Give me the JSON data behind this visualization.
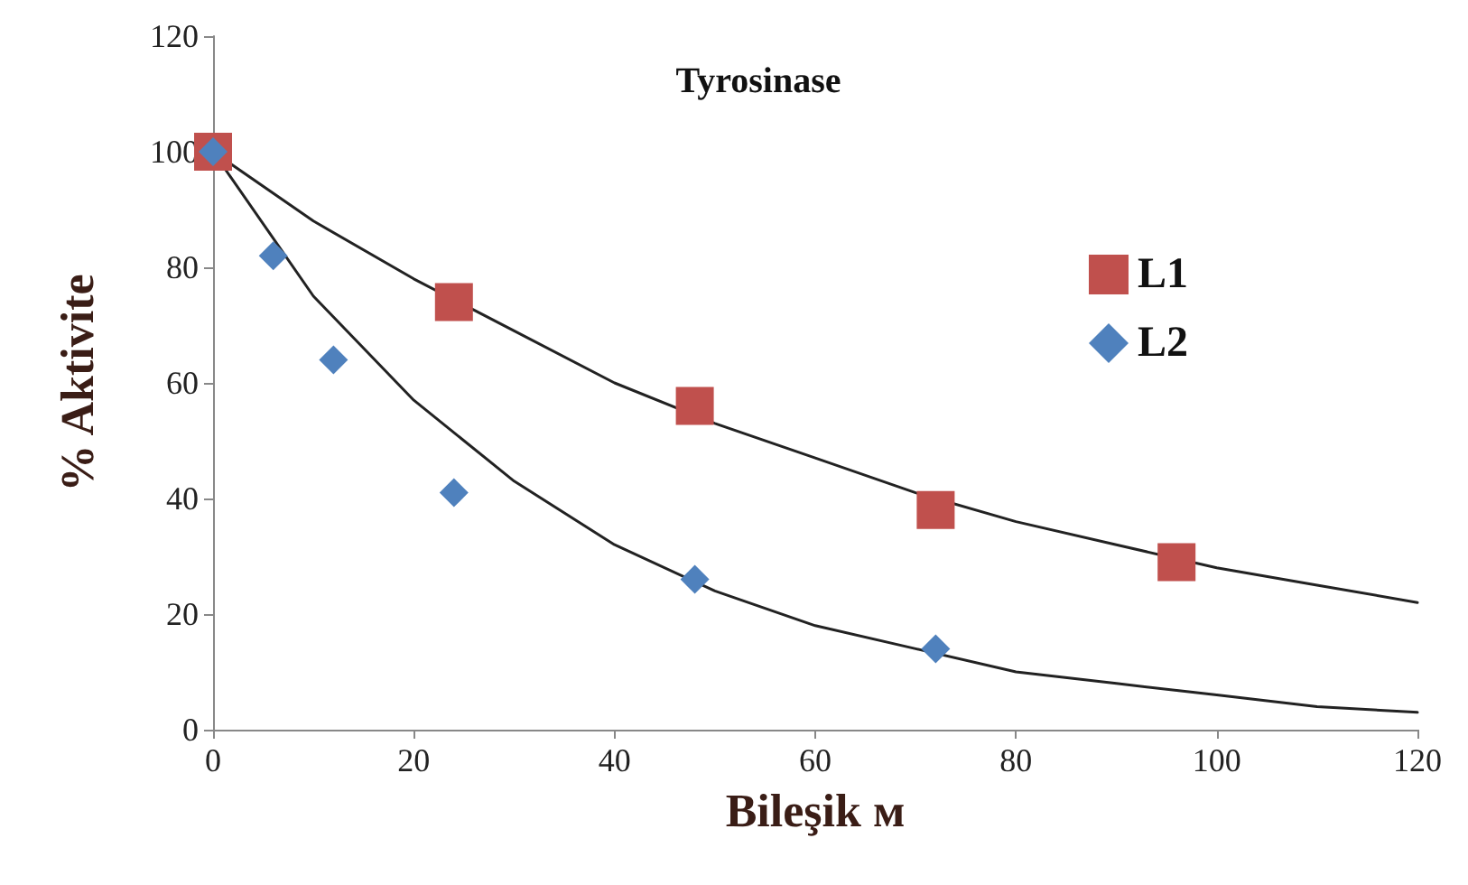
{
  "chart_data": {
    "type": "scatter",
    "title": "Tyrosinase",
    "xlabel": "Bileşik м",
    "ylabel": "% Aktivite",
    "xlim": [
      0,
      120
    ],
    "xticks": [
      0,
      20,
      40,
      60,
      80,
      100,
      120
    ],
    "ylim": [
      0,
      120
    ],
    "yticks": [
      0,
      20,
      40,
      60,
      80,
      100,
      120
    ],
    "grid": false,
    "legend": "top right",
    "series": [
      {
        "name": "L1",
        "color": "#c0504d",
        "marker": "square",
        "x": [
          0,
          24,
          48,
          72,
          96
        ],
        "values": [
          100,
          74,
          56,
          38,
          29
        ]
      },
      {
        "name": "L2",
        "color": "#4f81bd",
        "marker": "diamond",
        "x": [
          0,
          6,
          12,
          24,
          48,
          72
        ],
        "values": [
          100,
          82,
          64,
          41,
          26,
          14
        ]
      },
      {
        "type": "line",
        "color": "#222222",
        "marker": "none",
        "x": [
          0,
          10,
          20,
          30,
          40,
          50,
          60,
          70,
          80,
          90,
          100,
          110,
          120
        ],
        "values": [
          100,
          88,
          78,
          69,
          60,
          53,
          47,
          41,
          36,
          32,
          28,
          25,
          22
        ]
      },
      {
        "type": "line",
        "color": "#222222",
        "marker": "none",
        "x": [
          0,
          10,
          20,
          30,
          40,
          50,
          60,
          70,
          80,
          90,
          100,
          110,
          120
        ],
        "values": [
          100,
          75,
          57,
          43,
          32,
          24,
          18,
          14,
          10,
          8,
          6,
          4,
          3
        ]
      }
    ]
  }
}
